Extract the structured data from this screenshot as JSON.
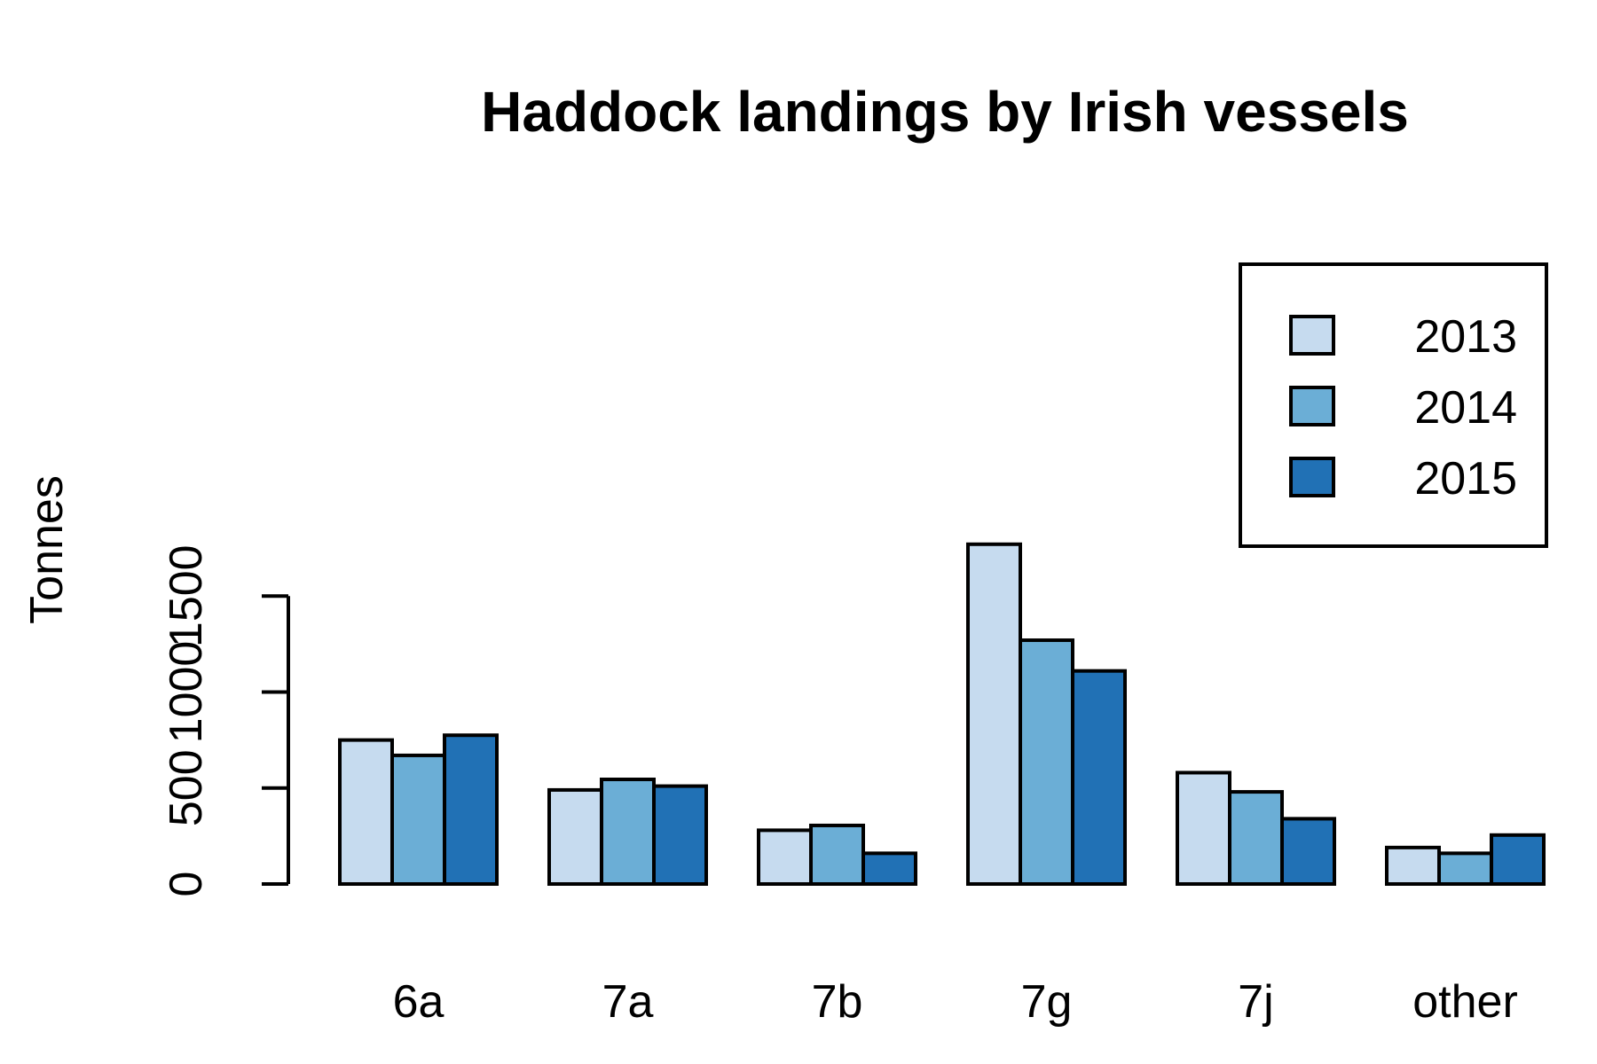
{
  "chart_data": {
    "type": "bar",
    "title": "Haddock landings by Irish vessels",
    "xlabel": "",
    "ylabel": "Tonnes",
    "categories": [
      "6a",
      "7a",
      "7b",
      "7g",
      "7j",
      "other"
    ],
    "series": [
      {
        "name": "2013",
        "color": "#c6dbef",
        "values": [
          750,
          490,
          280,
          1770,
          580,
          190
        ]
      },
      {
        "name": "2014",
        "color": "#6baed6",
        "values": [
          670,
          545,
          305,
          1270,
          480,
          160
        ]
      },
      {
        "name": "2015",
        "color": "#2171b5",
        "values": [
          775,
          510,
          160,
          1110,
          340,
          255
        ]
      }
    ],
    "yticks": [
      0,
      500,
      1000,
      1500
    ],
    "ylim": [
      0,
      1800
    ],
    "grid": false,
    "legend_position": "top-right"
  }
}
